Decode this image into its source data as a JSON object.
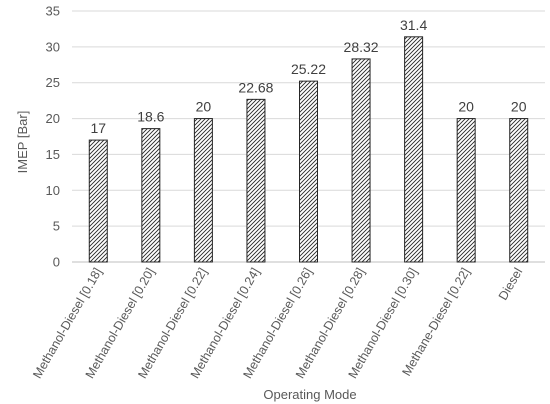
{
  "chart_data": {
    "type": "bar",
    "title": "",
    "xlabel": "Operating Mode",
    "ylabel": "IMEP [Bar]",
    "ylim": [
      0,
      35
    ],
    "yticks": [
      0,
      5,
      10,
      15,
      20,
      25,
      30,
      35
    ],
    "grid": true,
    "legend": "none",
    "bar_fill": "diagonal-hatch",
    "colors": {
      "bar_stroke": "#262626",
      "grid": "#d9d9d9",
      "text": "#595959"
    },
    "categories": [
      "Methanol-Diesel [0.18]",
      "Methanol-Diesel [0.20]",
      "Methanol-Diesel [0.22]",
      "Methanol-Diesel [0.24]",
      "Methanol-Diesel [0.26]",
      "Methanol-Diesel [0.28]",
      "Methanol-Diesel [0.30]",
      "Methane-Diesel [0.22]",
      "Diesel"
    ],
    "values": [
      17,
      18.6,
      20,
      22.68,
      25.22,
      28.32,
      31.4,
      20,
      20
    ],
    "data_labels": [
      "17",
      "18.6",
      "20",
      "22.68",
      "25.22",
      "28.32",
      "31.4",
      "20",
      "20"
    ]
  }
}
